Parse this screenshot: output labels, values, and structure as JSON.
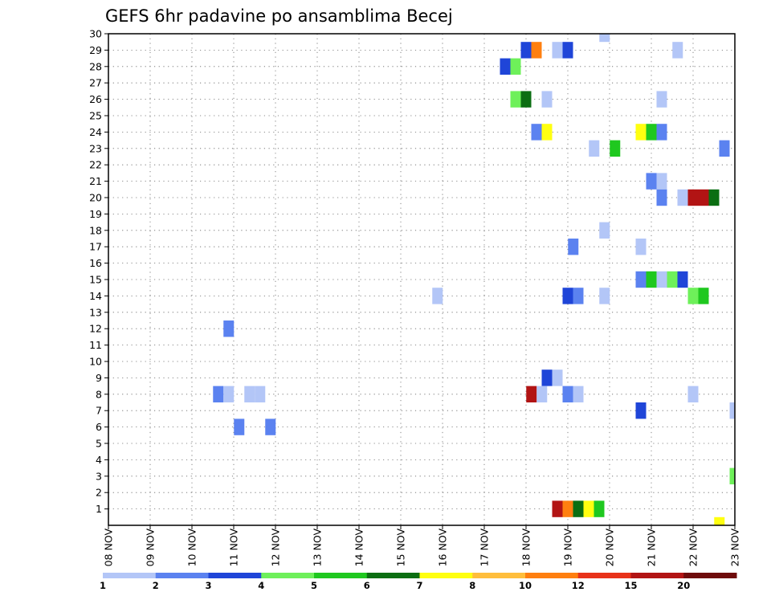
{
  "chart_data": {
    "type": "heatmap",
    "title": "GEFS 6hr padavine po ansamblima Becej",
    "xlabel": "",
    "ylabel": "",
    "x_ticks": [
      "08 NOV",
      "09 NOV",
      "10 NOV",
      "11 NOV",
      "12 NOV",
      "13 NOV",
      "14 NOV",
      "15 NOV",
      "16 NOV",
      "17 NOV",
      "18 NOV",
      "19 NOV",
      "20 NOV",
      "21 NOV",
      "22 NOV",
      "23 NOV"
    ],
    "y_ticks": [
      "1",
      "2",
      "3",
      "4",
      "5",
      "6",
      "7",
      "8",
      "9",
      "10",
      "11",
      "12",
      "13",
      "14",
      "15",
      "16",
      "17",
      "18",
      "19",
      "20",
      "21",
      "22",
      "23",
      "24",
      "25",
      "26",
      "27",
      "28",
      "29",
      "30"
    ],
    "xlim_days": [
      0,
      15
    ],
    "ylim": [
      0,
      30
    ],
    "grid": true,
    "colorbar": {
      "labels": [
        "1",
        "2",
        "3",
        "4",
        "5",
        "6",
        "7",
        "8",
        "10",
        "12",
        "15",
        "20"
      ],
      "colors": [
        "#b3c6f7",
        "#5b82f0",
        "#1f45d8",
        "#6ef05a",
        "#1fc81f",
        "#0b6e12",
        "#ffff10",
        "#ffbe3c",
        "#ff7f0f",
        "#e8321a",
        "#b21414",
        "#6e0b0b"
      ]
    },
    "cells": [
      {
        "member": 30,
        "day": 11.88,
        "value": 1
      },
      {
        "member": 29,
        "day": 10.0,
        "value": 3
      },
      {
        "member": 29,
        "day": 10.25,
        "value": 10
      },
      {
        "member": 29,
        "day": 10.75,
        "value": 1
      },
      {
        "member": 29,
        "day": 11.0,
        "value": 3
      },
      {
        "member": 29,
        "day": 13.63,
        "value": 1
      },
      {
        "member": 28,
        "day": 9.5,
        "value": 3
      },
      {
        "member": 28,
        "day": 9.75,
        "value": 4
      },
      {
        "member": 26,
        "day": 9.75,
        "value": 4
      },
      {
        "member": 26,
        "day": 10.0,
        "value": 6
      },
      {
        "member": 26,
        "day": 10.5,
        "value": 1
      },
      {
        "member": 26,
        "day": 13.25,
        "value": 1
      },
      {
        "member": 24,
        "day": 10.25,
        "value": 2
      },
      {
        "member": 24,
        "day": 10.5,
        "value": 7
      },
      {
        "member": 24,
        "day": 12.75,
        "value": 7
      },
      {
        "member": 24,
        "day": 13.0,
        "value": 5
      },
      {
        "member": 24,
        "day": 13.25,
        "value": 2
      },
      {
        "member": 23,
        "day": 11.63,
        "value": 1
      },
      {
        "member": 23,
        "day": 12.13,
        "value": 5
      },
      {
        "member": 23,
        "day": 14.75,
        "value": 2
      },
      {
        "member": 21,
        "day": 13.0,
        "value": 2
      },
      {
        "member": 21,
        "day": 13.25,
        "value": 1
      },
      {
        "member": 20,
        "day": 13.25,
        "value": 2
      },
      {
        "member": 20,
        "day": 13.75,
        "value": 1
      },
      {
        "member": 20,
        "day": 14.0,
        "value": 15
      },
      {
        "member": 20,
        "day": 14.25,
        "value": 15
      },
      {
        "member": 20,
        "day": 14.5,
        "value": 6
      },
      {
        "member": 18,
        "day": 11.88,
        "value": 1
      },
      {
        "member": 17,
        "day": 11.13,
        "value": 2
      },
      {
        "member": 17,
        "day": 12.75,
        "value": 1
      },
      {
        "member": 15,
        "day": 12.75,
        "value": 2
      },
      {
        "member": 15,
        "day": 13.0,
        "value": 5
      },
      {
        "member": 15,
        "day": 13.25,
        "value": 1
      },
      {
        "member": 15,
        "day": 13.5,
        "value": 4
      },
      {
        "member": 15,
        "day": 13.75,
        "value": 3
      },
      {
        "member": 14,
        "day": 7.88,
        "value": 1
      },
      {
        "member": 14,
        "day": 11.0,
        "value": 3
      },
      {
        "member": 14,
        "day": 11.25,
        "value": 2
      },
      {
        "member": 14,
        "day": 11.88,
        "value": 1
      },
      {
        "member": 14,
        "day": 14.0,
        "value": 4
      },
      {
        "member": 14,
        "day": 14.25,
        "value": 5
      },
      {
        "member": 12,
        "day": 2.88,
        "value": 2
      },
      {
        "member": 9,
        "day": 10.5,
        "value": 3
      },
      {
        "member": 9,
        "day": 10.75,
        "value": 1
      },
      {
        "member": 8,
        "day": 2.63,
        "value": 2
      },
      {
        "member": 8,
        "day": 2.88,
        "value": 1
      },
      {
        "member": 8,
        "day": 3.38,
        "value": 1
      },
      {
        "member": 8,
        "day": 3.63,
        "value": 1
      },
      {
        "member": 8,
        "day": 10.13,
        "value": 15
      },
      {
        "member": 8,
        "day": 10.38,
        "value": 1
      },
      {
        "member": 8,
        "day": 11.0,
        "value": 2
      },
      {
        "member": 8,
        "day": 11.25,
        "value": 1
      },
      {
        "member": 8,
        "day": 14.0,
        "value": 1
      },
      {
        "member": 7,
        "day": 12.75,
        "value": 3
      },
      {
        "member": 7,
        "day": 15.0,
        "value": 1
      },
      {
        "member": 6,
        "day": 3.13,
        "value": 2
      },
      {
        "member": 6,
        "day": 3.88,
        "value": 2
      },
      {
        "member": 3,
        "day": 15.0,
        "value": 4
      },
      {
        "member": 1,
        "day": 10.75,
        "value": 15
      },
      {
        "member": 1,
        "day": 11.0,
        "value": 10
      },
      {
        "member": 1,
        "day": 11.25,
        "value": 6
      },
      {
        "member": 1,
        "day": 11.5,
        "value": 7
      },
      {
        "member": 1,
        "day": 11.75,
        "value": 5
      },
      {
        "member": 0,
        "day": 14.63,
        "value": 7
      }
    ]
  }
}
